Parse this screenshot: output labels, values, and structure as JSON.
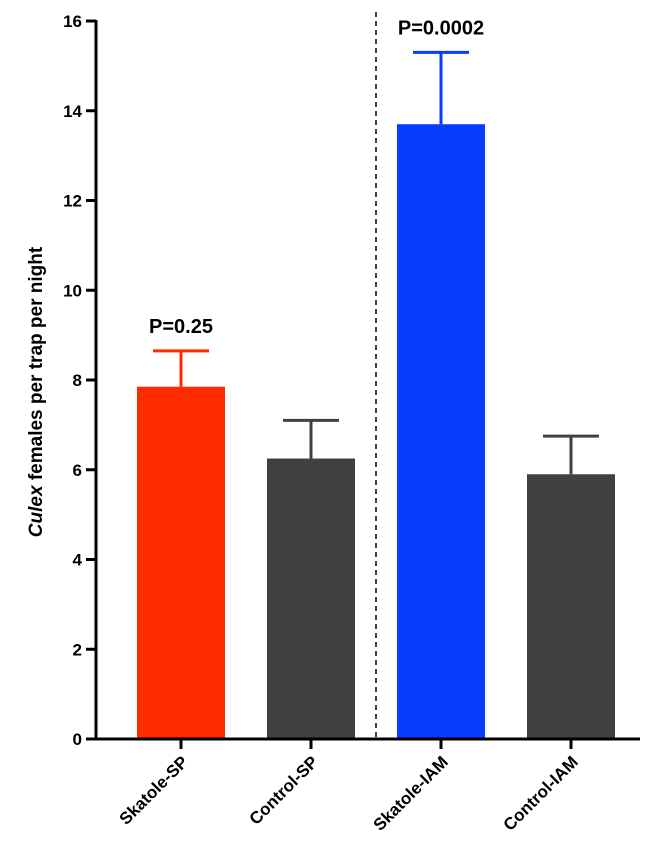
{
  "chart_data": {
    "type": "bar",
    "categories": [
      "Skatole-SP",
      "Control-SP",
      "Skatole-IAM",
      "Control-IAM"
    ],
    "values": [
      7.85,
      6.25,
      13.7,
      5.9
    ],
    "error_upper": [
      8.65,
      7.1,
      15.3,
      6.75
    ],
    "colors": [
      "#ff2a00",
      "#404040",
      "#0a3cff",
      "#404040"
    ],
    "ylabel_italic": "Culex",
    "ylabel_rest": " females per trap per night",
    "ylim": [
      0,
      16
    ],
    "yticks": [
      "0",
      "2",
      "4",
      "6",
      "8",
      "10",
      "12",
      "14",
      "16"
    ],
    "annotations": [
      {
        "text": "P=0.25",
        "category_index": 0
      },
      {
        "text": "P=0.0002",
        "category_index": 2
      }
    ],
    "divider_between": [
      1,
      2
    ],
    "grid": false,
    "legend": "none"
  }
}
